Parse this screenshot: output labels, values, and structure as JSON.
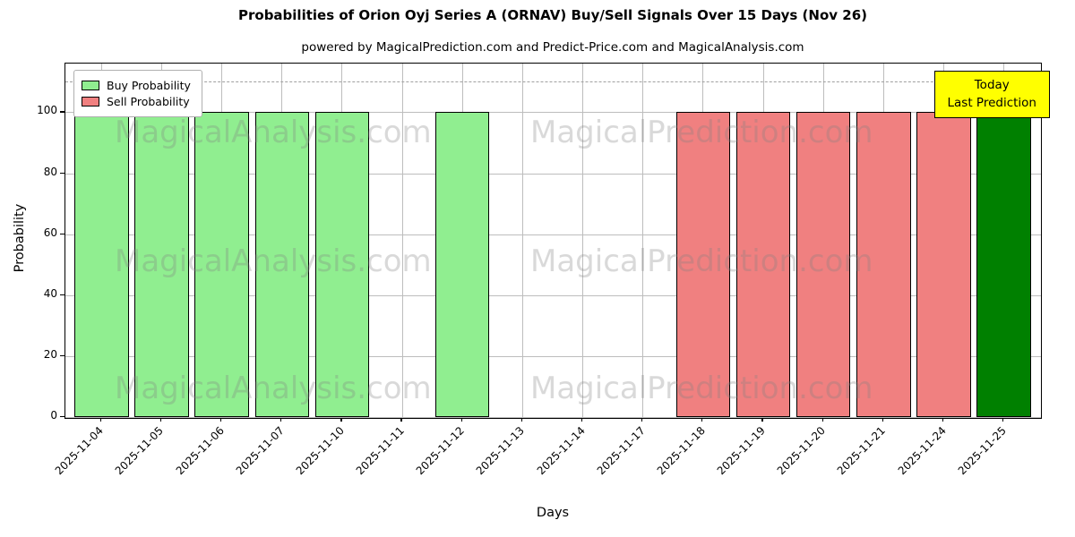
{
  "title": "Probabilities of Orion Oyj Series A (ORNAV) Buy/Sell Signals Over 15 Days (Nov 26)",
  "subtitle": "powered by MagicalPrediction.com and Predict-Price.com and MagicalAnalysis.com",
  "legend": {
    "buy_label": "Buy Probability",
    "sell_label": "Sell Probability"
  },
  "annotation": {
    "line1": "Today",
    "line2": "Last Prediction"
  },
  "watermarks": [
    "MagicalAnalysis.com",
    "MagicalPrediction.com"
  ],
  "colors": {
    "buy": "#90ee90",
    "sell": "#f08080",
    "today": "#008000",
    "bar_edge": "#000000",
    "grid": "#bdbdbd",
    "dashed_line": "#a0a0a0",
    "annotation_bg": "#ffff00"
  },
  "chart_data": {
    "type": "bar",
    "title": "Probabilities of Orion Oyj Series A (ORNAV) Buy/Sell Signals Over 15 Days (Nov 26)",
    "xlabel": "Days",
    "ylabel": "Probability",
    "ylim": [
      0,
      116
    ],
    "yticks": [
      0,
      20,
      40,
      60,
      80,
      100
    ],
    "dashed_line_y": 110,
    "grid": true,
    "legend_position": "upper left",
    "categories": [
      "2025-11-04",
      "2025-11-05",
      "2025-11-06",
      "2025-11-07",
      "2025-11-10",
      "2025-11-11",
      "2025-11-12",
      "2025-11-13",
      "2025-11-14",
      "2025-11-17",
      "2025-11-18",
      "2025-11-19",
      "2025-11-20",
      "2025-11-21",
      "2025-11-24",
      "2025-11-25"
    ],
    "series": [
      {
        "name": "Buy Probability",
        "color_key": "buy",
        "values": [
          100,
          100,
          100,
          100,
          100,
          0,
          100,
          0,
          0,
          0,
          0,
          0,
          0,
          0,
          0,
          0
        ]
      },
      {
        "name": "Sell Probability",
        "color_key": "sell",
        "values": [
          0,
          0,
          0,
          0,
          0,
          0,
          0,
          0,
          0,
          0,
          100,
          100,
          100,
          100,
          100,
          0
        ]
      },
      {
        "name": "Today Last Prediction",
        "color_key": "today",
        "values": [
          0,
          0,
          0,
          0,
          0,
          0,
          0,
          0,
          0,
          0,
          0,
          0,
          0,
          0,
          0,
          100
        ]
      }
    ]
  }
}
